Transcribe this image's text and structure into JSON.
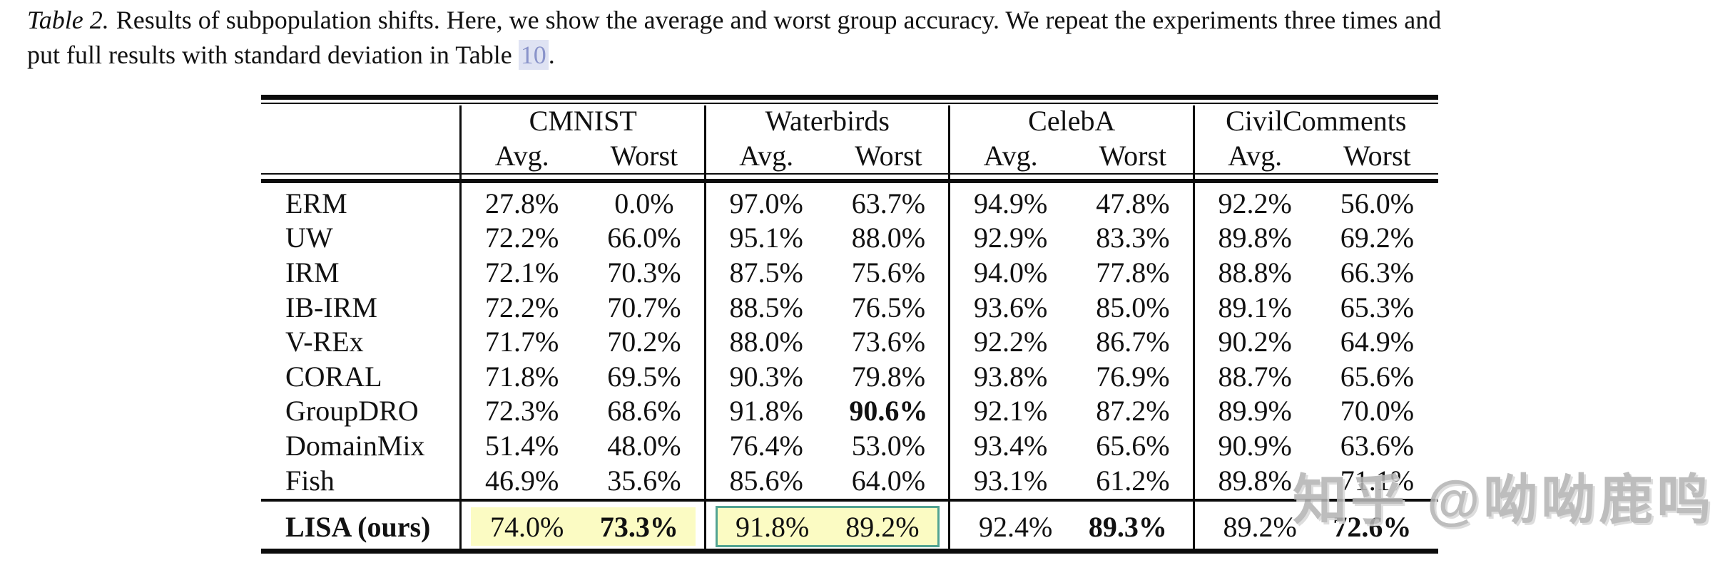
{
  "caption": {
    "label": "Table 2.",
    "line1": "Results of subpopulation shifts. Here, we show the average and worst group accuracy. We repeat the experiments three times and",
    "line2_before": "put full results with standard deviation in Table ",
    "link_text": "10",
    "line2_after": "."
  },
  "table": {
    "group_headers": [
      "CMNIST",
      "Waterbirds",
      "CelebA",
      "CivilComments"
    ],
    "subheaders": [
      "Avg.",
      "Worst"
    ],
    "rows": [
      {
        "method": "ERM",
        "values": [
          "27.8%",
          "0.0%",
          "97.0%",
          "63.7%",
          "94.9%",
          "47.8%",
          "92.2%",
          "56.0%"
        ],
        "bold": []
      },
      {
        "method": "UW",
        "values": [
          "72.2%",
          "66.0%",
          "95.1%",
          "88.0%",
          "92.9%",
          "83.3%",
          "89.8%",
          "69.2%"
        ],
        "bold": []
      },
      {
        "method": "IRM",
        "values": [
          "72.1%",
          "70.3%",
          "87.5%",
          "75.6%",
          "94.0%",
          "77.8%",
          "88.8%",
          "66.3%"
        ],
        "bold": []
      },
      {
        "method": "IB-IRM",
        "values": [
          "72.2%",
          "70.7%",
          "88.5%",
          "76.5%",
          "93.6%",
          "85.0%",
          "89.1%",
          "65.3%"
        ],
        "bold": []
      },
      {
        "method": "V-REx",
        "values": [
          "71.7%",
          "70.2%",
          "88.0%",
          "73.6%",
          "92.2%",
          "86.7%",
          "90.2%",
          "64.9%"
        ],
        "bold": []
      },
      {
        "method": "CORAL",
        "values": [
          "71.8%",
          "69.5%",
          "90.3%",
          "79.8%",
          "93.8%",
          "76.9%",
          "88.7%",
          "65.6%"
        ],
        "bold": []
      },
      {
        "method": "GroupDRO",
        "values": [
          "72.3%",
          "68.6%",
          "91.8%",
          "90.6%",
          "92.1%",
          "87.2%",
          "89.9%",
          "70.0%"
        ],
        "bold": [
          3
        ]
      },
      {
        "method": "DomainMix",
        "values": [
          "51.4%",
          "48.0%",
          "76.4%",
          "53.0%",
          "93.4%",
          "65.6%",
          "90.9%",
          "63.6%"
        ],
        "bold": []
      },
      {
        "method": "Fish",
        "values": [
          "46.9%",
          "35.6%",
          "85.6%",
          "64.0%",
          "93.1%",
          "61.2%",
          "89.8%",
          "71.1%"
        ],
        "bold": []
      }
    ],
    "lisa_row": {
      "method": "LISA (ours)",
      "values": [
        "74.0%",
        "73.3%",
        "91.8%",
        "89.2%",
        "92.4%",
        "89.3%",
        "89.2%",
        "72.6%"
      ],
      "bold": [
        1,
        5,
        7
      ],
      "highlight_groups": [
        "yellow",
        "yellow-border",
        "none",
        "none"
      ]
    }
  },
  "watermark": {
    "text": "知乎 @呦呦鹿鸣"
  },
  "colors": {
    "highlight_yellow": "#fbfbc3",
    "highlight_border_teal": "#52a391",
    "link_text": "#8a94ca",
    "link_bg": "#dfe3f3",
    "watermark_gray": "#b4b4b4",
    "rule_black": "#0c0c0c"
  }
}
